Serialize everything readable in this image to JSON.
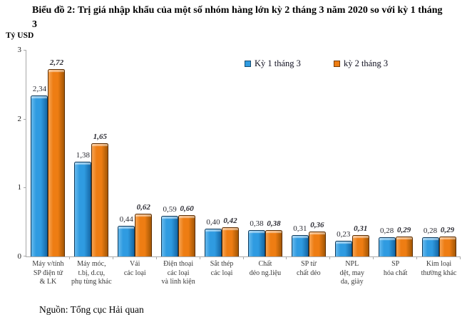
{
  "title": "Biểu đồ 2: Trị giá nhập khẩu của một số nhóm hàng lớn kỳ 2 tháng 3 năm 2020 so với kỳ 1 tháng 3",
  "ylabel": "Tỷ USD",
  "source": "Nguồn: Tổng cục Hải quan",
  "colors": {
    "series1": "#2F9BE1",
    "series2": "#EE7D13",
    "axis": "#A8A8A8"
  },
  "legend": [
    {
      "label": "Kỳ 1 tháng 3",
      "color": "#2F9BE1"
    },
    {
      "label": "kỳ 2 tháng 3",
      "color": "#EE7D13"
    }
  ],
  "chart_data": {
    "type": "bar",
    "title": "Biểu đồ 2: Trị giá nhập khẩu của một số nhóm hàng lớn kỳ 2 tháng 3 năm 2020 so với kỳ 1 tháng 3",
    "xlabel": "",
    "ylabel": "Tỷ USD",
    "ylim": [
      0,
      3
    ],
    "yticks": [
      0,
      1,
      2,
      3
    ],
    "grid": false,
    "legend_position": "top-right-inside",
    "categories": [
      "Máy v/tính SP điện tử & LK",
      "Máy móc, t.bị, d.cụ, phụ tùng khác",
      "Vải các loại",
      "Điện thoại các loại và linh kiện",
      "Sắt thép các loại",
      "Chất dẻo ng.liệu",
      "SP từ chất dẻo",
      "NPL dệt, may da, giày",
      "SP hóa chất",
      "Kim loại thường khác"
    ],
    "category_lines": [
      [
        "Máy v/tính",
        "SP điện tử",
        "& LK"
      ],
      [
        "Máy móc,",
        "t.bị, d.cụ,",
        "phụ tùng khác"
      ],
      [
        "Vải",
        "các loại"
      ],
      [
        "Điện thoại",
        "các loại",
        "và linh kiện"
      ],
      [
        "Sắt thép",
        "các loại"
      ],
      [
        "Chất",
        "dẻo ng.liệu"
      ],
      [
        "SP từ",
        "chất dẻo"
      ],
      [
        "NPL",
        "dệt, may",
        "da, giày"
      ],
      [
        "SP",
        "hóa chất"
      ],
      [
        "Kim loại",
        "thường khác"
      ]
    ],
    "series": [
      {
        "name": "Kỳ 1 tháng 3",
        "color": "#2F9BE1",
        "values": [
          2.34,
          1.38,
          0.44,
          0.59,
          0.4,
          0.38,
          0.31,
          0.23,
          0.28,
          0.28
        ],
        "labels": [
          "2,34",
          "1,38",
          "0,44",
          "0,59",
          "0,40",
          "0,38",
          "0,31",
          "0,23",
          "0,28",
          "0,28"
        ]
      },
      {
        "name": "kỳ 2 tháng 3",
        "color": "#EE7D13",
        "values": [
          2.72,
          1.65,
          0.62,
          0.6,
          0.42,
          0.38,
          0.36,
          0.31,
          0.29,
          0.29
        ],
        "labels": [
          "2,72",
          "1,65",
          "0,62",
          "0,60",
          "0,42",
          "0,38",
          "0,36",
          "0,31",
          "0,29",
          "0,29"
        ]
      }
    ]
  }
}
